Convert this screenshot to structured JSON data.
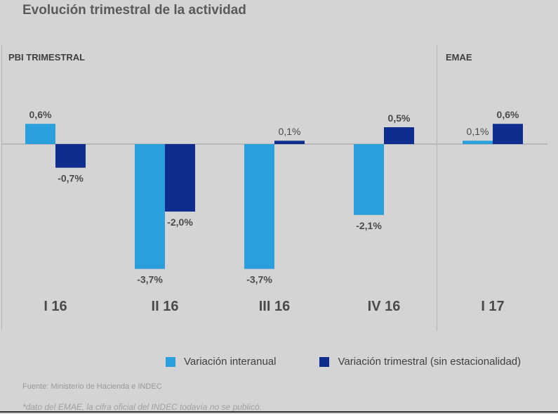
{
  "title": "Evolución trimestral de la actividad",
  "sections": {
    "left": "PBI TRIMESTRAL",
    "right": "EMAE"
  },
  "legend": {
    "interanual": "Variación interanual",
    "trimestral": "Variación trimestral (sin estacionalidad)"
  },
  "colors": {
    "interanual": "#2b9fdc",
    "trimestral": "#0f2d8f",
    "background": "#d4d4d4"
  },
  "source": "Fuente: Ministerio de Hacienda e INDEC",
  "note": "*dato del EMAE, la cifra oficial del INDEC todavía no se publicó.",
  "chart_data": {
    "type": "bar",
    "categories": [
      "I 16",
      "II 16",
      "III 16",
      "IV 16",
      "I 17"
    ],
    "series": [
      {
        "name": "Variación interanual",
        "values": [
          0.6,
          -3.7,
          -3.7,
          -2.1,
          0.1
        ],
        "labels": [
          "0,6%",
          "-3,7%",
          "-3,7%",
          "-2,1%",
          "0,1%"
        ]
      },
      {
        "name": "Variación trimestral (sin estacionalidad)",
        "values": [
          -0.7,
          -2.0,
          0.1,
          0.5,
          0.6
        ],
        "labels": [
          "-0,7%",
          "-2,0%",
          "0,1%",
          "0,5%",
          "0,6%"
        ]
      }
    ],
    "ylim": [
      -3.7,
      0.6
    ],
    "legend_position": "bottom-right",
    "grid": false
  }
}
